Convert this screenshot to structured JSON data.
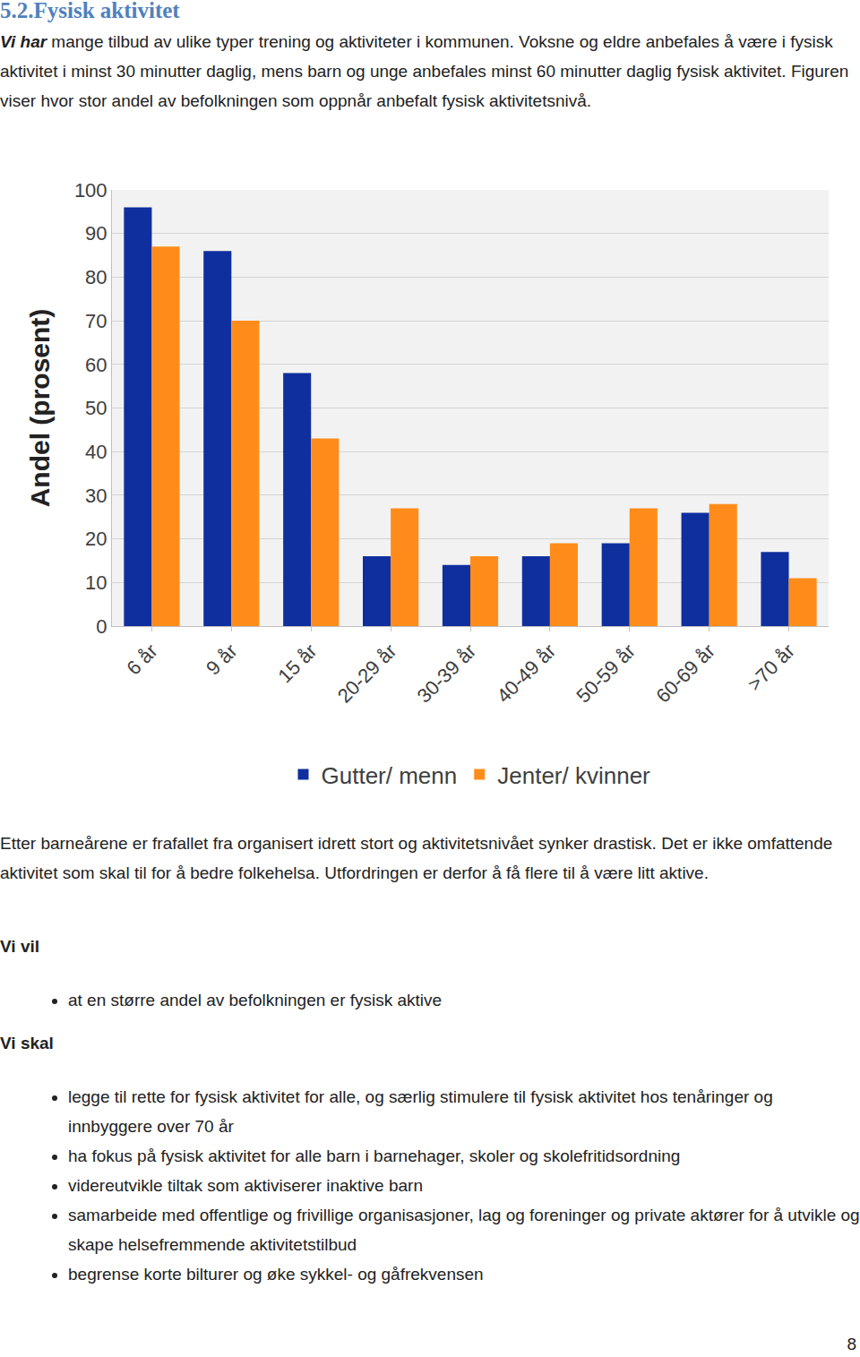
{
  "document": {
    "heading": "5.2.Fysisk aktivitet",
    "intro": {
      "lead": "Vi har",
      "text": " mange tilbud av ulike typer trening og aktiviteter i kommunen. Voksne og eldre anbefales å være i fysisk aktivitet i minst 30 minutter daglig, mens barn og unge anbefales minst 60 minutter daglig fysisk aktivitet. Figuren viser hvor stor andel av befolkningen som oppnår anbefalt fysisk aktivitetsnivå."
    },
    "after_chart": "Etter barneårene er frafallet fra organisert idrett stort og aktivitetsnivået synker drastisk. Det er ikke omfattende aktivitet som skal til for å bedre folkehelsa. Utfordringen er derfor å få flere til å være litt aktive.",
    "sections": [
      {
        "title": "Vi vil",
        "items": [
          "at en større andel av befolkningen er fysisk aktive"
        ]
      },
      {
        "title": "Vi skal",
        "items": [
          "legge til rette for fysisk aktivitet for alle, og særlig stimulere til fysisk aktivitet hos tenåringer og innbyggere over 70 år",
          "ha fokus på fysisk aktivitet for alle barn i barnehager, skoler og skolefritidsordning",
          "videreutvikle tiltak som aktiviserer inaktive barn",
          "samarbeide med offentlige og frivillige organisasjoner, lag og foreninger og private aktører for å utvikle og skape helsefremmende aktivitetstilbud",
          "begrense korte bilturer og øke sykkel- og gåfrekvensen"
        ]
      }
    ],
    "page_number": "8"
  },
  "chart_data": {
    "type": "bar",
    "y_label": "Andel (prosent)",
    "categories": [
      "6 år",
      "9 år",
      "15 år",
      "20-29 år",
      "30-39 år",
      "40-49 år",
      "50-59 år",
      "60-69 år",
      ">70 år"
    ],
    "series": [
      {
        "name": "Gutter/ menn",
        "color": "#0f2f9e",
        "values": [
          96,
          86,
          58,
          16,
          14,
          16,
          19,
          26,
          17
        ]
      },
      {
        "name": "Jenter/ kvinner",
        "color": "#ff8c1a",
        "values": [
          87,
          70,
          43,
          27,
          16,
          19,
          27,
          28,
          11
        ]
      }
    ],
    "ylim": [
      0,
      100
    ],
    "yticks": [
      0,
      10,
      20,
      30,
      40,
      50,
      60,
      70,
      80,
      90,
      100
    ],
    "grid": true,
    "legend": "bottom"
  }
}
